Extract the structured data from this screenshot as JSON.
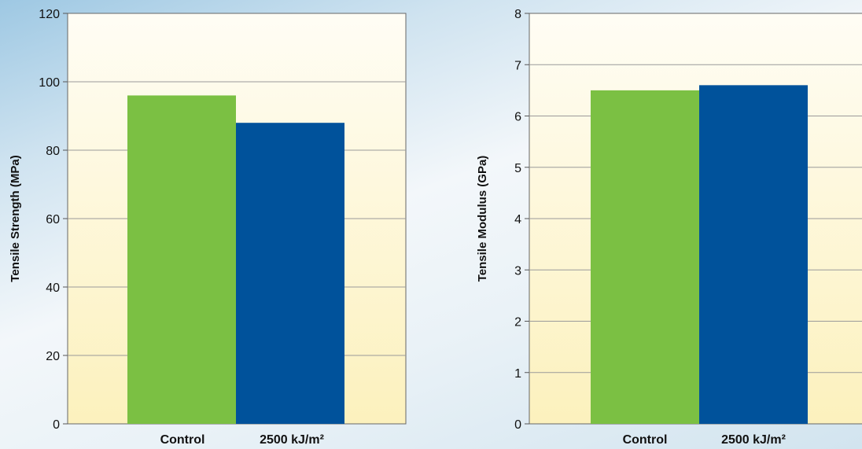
{
  "chart_data": [
    {
      "type": "bar",
      "categories": [
        "Control",
        "2500 kJ/m²"
      ],
      "values": [
        96,
        88
      ],
      "ylabel": "Tensile Strength (MPa)",
      "ylim": [
        0,
        120
      ],
      "yticks": [
        "0",
        "20",
        "40",
        "60",
        "80",
        "100",
        "120"
      ],
      "grid": true,
      "colors": [
        "#7bc043",
        "#00529b"
      ]
    },
    {
      "type": "bar",
      "categories": [
        "Control",
        "2500 kJ/m²"
      ],
      "values": [
        6.5,
        6.6
      ],
      "ylabel": "Tensile Modulus (GPa)",
      "ylim": [
        0,
        8
      ],
      "yticks": [
        "0",
        "1",
        "2",
        "3",
        "4",
        "5",
        "6",
        "7",
        "8"
      ],
      "grid": true,
      "colors": [
        "#7bc043",
        "#00529b"
      ]
    }
  ]
}
